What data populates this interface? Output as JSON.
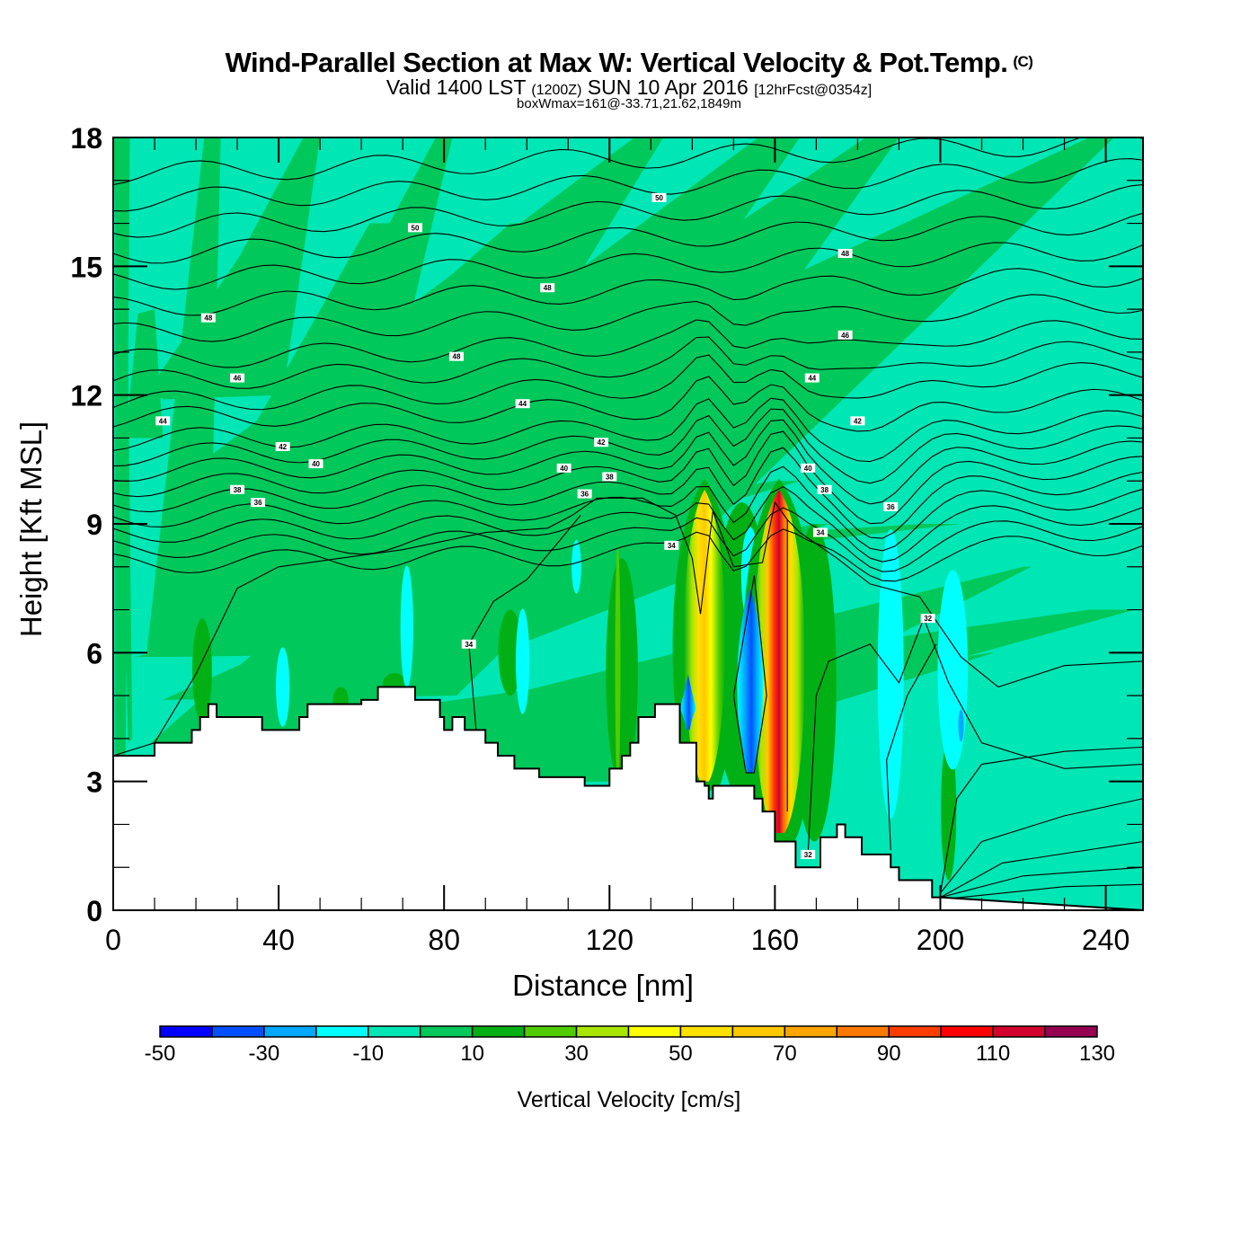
{
  "header": {
    "title": "Wind-Parallel Section at Max W: Vertical Velocity & Pot.Temp.",
    "copyright": "(C)",
    "valid_prefix": "Valid 1400 LST",
    "valid_z": "(1200Z)",
    "valid_date": "SUN 10 Apr 2016",
    "forecast": "[12hrFcst@0354z]",
    "box_wmax": "boxWmax=161@-33.71,21.62,1849m"
  },
  "chart_data": {
    "type": "heatmap",
    "title": "Wind-Parallel Section at Max W: Vertical Velocity & Pot.Temp.",
    "xlabel": "Distance [nm]",
    "ylabel": "Height [Kft MSL]",
    "xlim": [
      0,
      249
    ],
    "ylim": [
      0,
      18
    ],
    "x_ticks": [
      0,
      40,
      80,
      120,
      160,
      200,
      240
    ],
    "x_tick_labels": [
      "0",
      "40",
      "80",
      "120",
      "160",
      "200",
      "240"
    ],
    "x_minor_step": 10,
    "y_ticks": [
      0,
      3,
      6,
      9,
      12,
      15,
      18
    ],
    "y_tick_labels": [
      "0",
      "3",
      "6",
      "9",
      "12",
      "15",
      "18"
    ],
    "y_minor_step": 1,
    "colorbar": {
      "title": "Vertical Velocity [cm/s]",
      "levels": [
        -50,
        -40,
        -30,
        -20,
        -10,
        0,
        10,
        20,
        30,
        40,
        50,
        60,
        70,
        80,
        90,
        100,
        110,
        120,
        130
      ],
      "tick_labels": [
        "-50",
        "-30",
        "-10",
        "10",
        "30",
        "50",
        "70",
        "90",
        "110",
        "130"
      ],
      "tick_values": [
        -50,
        -30,
        -10,
        10,
        30,
        50,
        70,
        90,
        110,
        130
      ],
      "colors": [
        "#0000ff",
        "#0050ff",
        "#00a8ff",
        "#00ffff",
        "#00e6b4",
        "#00c85a",
        "#00b014",
        "#50cc00",
        "#a8e600",
        "#ffff00",
        "#ffe100",
        "#ffc800",
        "#ffa500",
        "#ff7800",
        "#ff3c00",
        "#ff0000",
        "#d2002d",
        "#960050"
      ]
    },
    "terrain_kft": {
      "x": [
        0,
        10,
        10,
        19,
        19,
        21,
        21,
        23,
        23,
        25,
        25,
        27,
        27,
        28,
        28,
        36,
        36,
        45,
        45,
        47,
        47,
        60,
        60,
        64,
        64,
        73,
        73,
        79,
        79,
        80,
        80,
        82,
        82,
        85,
        85,
        90,
        90,
        93,
        93,
        97,
        97,
        103,
        103,
        114,
        114,
        120,
        120,
        123,
        123,
        125,
        125,
        127,
        127,
        131,
        131,
        137,
        137,
        141,
        141,
        143,
        143,
        144,
        144,
        145,
        145,
        150,
        150,
        151,
        151,
        155,
        155,
        157,
        157,
        160,
        160,
        165,
        165,
        171,
        171,
        175,
        175,
        177,
        177,
        181,
        181,
        188,
        188,
        190,
        190,
        198,
        198,
        200,
        249
      ],
      "y": [
        3.6,
        3.6,
        3.9,
        3.9,
        4.2,
        4.2,
        4.5,
        4.5,
        4.8,
        4.8,
        4.5,
        4.5,
        4.5,
        4.5,
        4.5,
        4.5,
        4.2,
        4.2,
        4.5,
        4.5,
        4.8,
        4.8,
        4.9,
        4.9,
        5.2,
        5.2,
        4.9,
        4.9,
        4.5,
        4.5,
        4.2,
        4.2,
        4.5,
        4.5,
        4.2,
        4.2,
        3.9,
        3.9,
        3.6,
        3.6,
        3.3,
        3.3,
        3.1,
        3.1,
        2.9,
        2.9,
        3.3,
        3.3,
        3.6,
        3.6,
        3.9,
        3.9,
        4.5,
        4.5,
        4.8,
        4.8,
        3.9,
        3.9,
        3.0,
        3.0,
        2.9,
        2.9,
        2.6,
        2.6,
        2.9,
        2.9,
        2.9,
        2.9,
        2.9,
        2.9,
        2.6,
        2.6,
        2.3,
        2.3,
        1.6,
        1.6,
        1.0,
        1.0,
        1.7,
        1.7,
        2.0,
        2.0,
        1.7,
        1.7,
        1.3,
        1.3,
        1.0,
        1.0,
        0.7,
        0.7,
        0.3,
        0.3,
        0
      ]
    },
    "velocity_features": [
      {
        "label": "updraft-1",
        "x_nm": 143,
        "z_bottom_kft": 3.0,
        "z_top_kft": 9.8,
        "peak_cm_s": 70
      },
      {
        "label": "updraft-2",
        "x_nm": 161,
        "z_bottom_kft": 1.8,
        "z_top_kft": 9.8,
        "peak_cm_s": 110
      },
      {
        "label": "downdraft-1",
        "x_nm": 154,
        "z_bottom_kft": 3.2,
        "z_top_kft": 7.5,
        "peak_cm_s": -40
      },
      {
        "label": "downdraft-2",
        "x_nm": 139,
        "z_bottom_kft": 4.2,
        "z_top_kft": 5.5,
        "peak_cm_s": -30
      }
    ],
    "theta_contours": [
      {
        "label": "34",
        "kind": "low"
      },
      {
        "label": "36"
      },
      {
        "label": "38"
      },
      {
        "label": "40"
      },
      {
        "label": "42"
      },
      {
        "label": "44"
      },
      {
        "label": "46"
      },
      {
        "label": "48"
      },
      {
        "label": "50"
      }
    ],
    "contour_labels": [
      {
        "text": "50",
        "x": 73,
        "z": 15.9
      },
      {
        "text": "50",
        "x": 132,
        "z": 16.6
      },
      {
        "text": "48",
        "x": 105,
        "z": 14.5
      },
      {
        "text": "48",
        "x": 177,
        "z": 15.3
      },
      {
        "text": "48",
        "x": 23,
        "z": 13.8
      },
      {
        "text": "48",
        "x": 83,
        "z": 12.9
      },
      {
        "text": "46",
        "x": 177,
        "z": 13.4
      },
      {
        "text": "46",
        "x": 30,
        "z": 12.4
      },
      {
        "text": "44",
        "x": 99,
        "z": 11.8
      },
      {
        "text": "44",
        "x": 169,
        "z": 12.4
      },
      {
        "text": "44",
        "x": 12,
        "z": 11.4
      },
      {
        "text": "42",
        "x": 118,
        "z": 10.9
      },
      {
        "text": "42",
        "x": 41,
        "z": 10.8
      },
      {
        "text": "42",
        "x": 180,
        "z": 11.4
      },
      {
        "text": "40",
        "x": 49,
        "z": 10.4
      },
      {
        "text": "40",
        "x": 109,
        "z": 10.3
      },
      {
        "text": "40",
        "x": 168,
        "z": 10.3
      },
      {
        "text": "38",
        "x": 30,
        "z": 9.8
      },
      {
        "text": "38",
        "x": 120,
        "z": 10.1
      },
      {
        "text": "38",
        "x": 172,
        "z": 9.8
      },
      {
        "text": "36",
        "x": 35,
        "z": 9.5
      },
      {
        "text": "36",
        "x": 114,
        "z": 9.7
      },
      {
        "text": "36",
        "x": 188,
        "z": 9.4
      },
      {
        "text": "34",
        "x": 135,
        "z": 8.5
      },
      {
        "text": "34",
        "x": 171,
        "z": 8.8
      },
      {
        "text": "34",
        "x": 86,
        "z": 6.2
      },
      {
        "text": "32",
        "x": 197,
        "z": 6.8
      },
      {
        "text": "32",
        "x": 168,
        "z": 1.3
      }
    ]
  }
}
